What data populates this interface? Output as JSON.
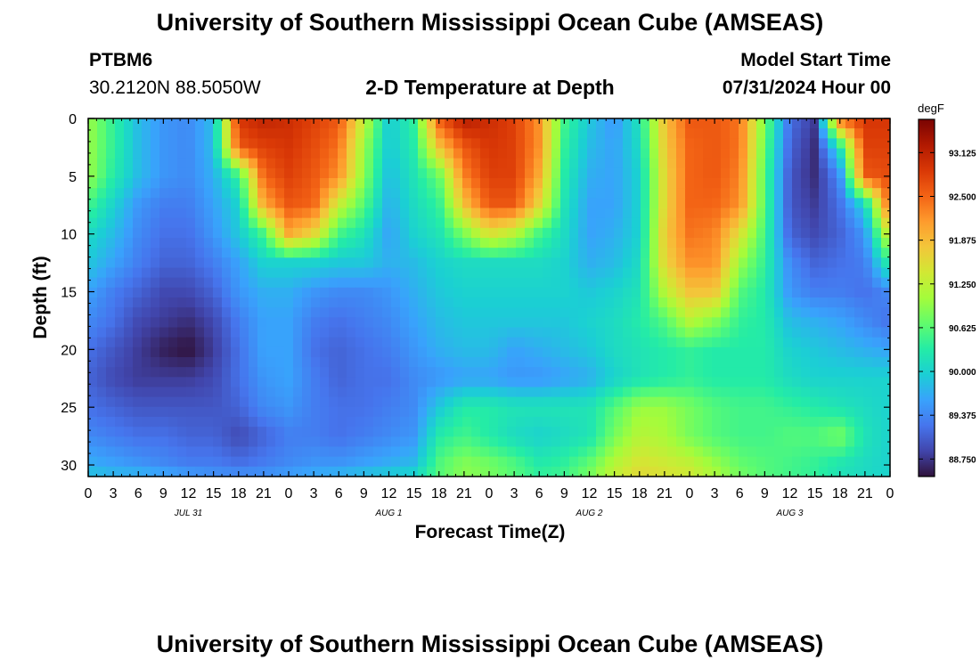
{
  "header": {
    "title": "University of Southern Mississippi Ocean Cube (AMSEAS)",
    "station": "PTBM6",
    "location": "30.2120N  88.5050W",
    "plot_title": "2-D Temperature at Depth",
    "model_start_label": "Model Start Time",
    "model_start_value": "07/31/2024 Hour 00"
  },
  "footer": {
    "title": "University of Southern Mississippi Ocean Cube (AMSEAS)"
  },
  "chart_data": {
    "type": "heatmap",
    "title": "2-D Temperature at Depth",
    "xlabel": "Forecast Time(Z)",
    "ylabel": "Depth (ft)",
    "x_tick_labels": [
      "0",
      "3",
      "6",
      "9",
      "12",
      "15",
      "18",
      "21",
      "0",
      "3",
      "6",
      "9",
      "12",
      "15",
      "18",
      "21",
      "0",
      "3",
      "6",
      "9",
      "12",
      "15",
      "18",
      "21",
      "0",
      "3",
      "6",
      "9",
      "12",
      "15",
      "18",
      "21",
      "0"
    ],
    "date_labels": [
      {
        "label": "JUL 31",
        "tick_index": 4
      },
      {
        "label": "AUG 1",
        "tick_index": 12
      },
      {
        "label": "AUG 2",
        "tick_index": 20
      },
      {
        "label": "AUG 3",
        "tick_index": 28
      }
    ],
    "y_ticks": [
      0,
      5,
      10,
      15,
      20,
      25,
      30
    ],
    "ylim": [
      31,
      0
    ],
    "x_hours_range": [
      0,
      96
    ],
    "colorbar": {
      "unit": "degF",
      "ticks": [
        "93.125",
        "92.500",
        "91.875",
        "91.250",
        "90.625",
        "90.000",
        "89.375",
        "88.750"
      ],
      "range": [
        88.5,
        93.6
      ]
    },
    "colorscale": [
      "#30123b",
      "#4145ab",
      "#4675ed",
      "#39a2fc",
      "#1bcfd4",
      "#24eca6",
      "#61fc6c",
      "#a4fc3b",
      "#d1e834",
      "#f3c63a",
      "#fe9b2d",
      "#f36315",
      "#d93806",
      "#b11901",
      "#7a0402"
    ],
    "grid_hours": [
      0,
      3,
      6,
      9,
      12,
      15,
      18,
      21,
      24,
      27,
      30,
      33,
      36,
      39,
      42,
      45,
      48,
      51,
      54,
      57,
      60,
      63,
      66,
      69,
      72,
      75,
      78,
      81,
      84,
      87,
      90,
      93,
      96
    ],
    "grid_depths": [
      0,
      2.5,
      5,
      7.5,
      10,
      12.5,
      15,
      17.5,
      20,
      22.5,
      25,
      27.5,
      30,
      31
    ],
    "values": [
      [
        91.0,
        90.4,
        89.8,
        89.5,
        89.4,
        89.8,
        92.9,
        93.1,
        93.0,
        92.8,
        92.6,
        91.3,
        89.9,
        90.4,
        92.6,
        93.2,
        93.0,
        92.8,
        92.2,
        90.5,
        89.9,
        89.5,
        90.2,
        91.8,
        92.6,
        92.6,
        92.4,
        90.8,
        89.2,
        88.8,
        92.5,
        92.9,
        92.9
      ],
      [
        91.0,
        90.4,
        89.8,
        89.5,
        89.4,
        89.8,
        92.6,
        92.8,
        92.9,
        92.7,
        92.4,
        91.0,
        89.9,
        90.3,
        91.8,
        92.6,
        92.9,
        92.8,
        92.2,
        90.4,
        89.8,
        89.6,
        90.1,
        91.7,
        92.5,
        92.6,
        92.4,
        90.7,
        89.1,
        88.7,
        90.2,
        92.8,
        92.8
      ],
      [
        91.0,
        90.3,
        89.8,
        89.5,
        89.4,
        89.7,
        90.4,
        92.5,
        92.8,
        92.6,
        92.2,
        90.9,
        89.8,
        90.2,
        90.7,
        92.3,
        92.8,
        92.8,
        92.0,
        90.3,
        89.7,
        89.6,
        90.0,
        91.6,
        92.5,
        92.6,
        92.3,
        90.6,
        89.0,
        88.7,
        89.4,
        92.6,
        92.7
      ],
      [
        90.5,
        90.0,
        89.5,
        89.3,
        89.3,
        89.6,
        90.0,
        92.0,
        92.6,
        92.5,
        91.3,
        90.6,
        89.7,
        90.1,
        90.4,
        91.8,
        92.6,
        92.6,
        91.6,
        90.2,
        89.6,
        89.6,
        90.0,
        91.6,
        92.5,
        92.5,
        92.2,
        90.6,
        89.0,
        88.8,
        89.2,
        90.0,
        92.6
      ],
      [
        90.1,
        89.8,
        89.4,
        89.2,
        89.2,
        89.5,
        89.9,
        90.5,
        92.0,
        91.6,
        90.5,
        90.2,
        89.6,
        90.0,
        90.2,
        90.8,
        91.5,
        91.2,
        90.5,
        90.1,
        89.6,
        89.7,
        90.0,
        91.7,
        92.4,
        92.3,
        91.5,
        90.5,
        89.1,
        88.9,
        89.1,
        89.5,
        91.5
      ],
      [
        89.9,
        89.6,
        89.3,
        89.1,
        89.1,
        89.3,
        89.6,
        90.0,
        90.0,
        90.0,
        89.9,
        89.9,
        89.7,
        89.8,
        90.0,
        90.1,
        90.1,
        90.1,
        90.1,
        90.0,
        89.7,
        89.8,
        90.1,
        91.6,
        92.2,
        92.2,
        91.0,
        90.4,
        89.4,
        89.1,
        89.2,
        89.3,
        90.4
      ],
      [
        89.6,
        89.3,
        89.1,
        88.9,
        88.9,
        89.1,
        89.5,
        89.7,
        89.7,
        89.5,
        89.4,
        89.4,
        89.5,
        89.7,
        89.9,
        90.0,
        90.0,
        90.0,
        90.0,
        90.0,
        89.9,
        90.0,
        90.2,
        91.2,
        91.8,
        91.8,
        90.6,
        90.3,
        89.5,
        89.3,
        89.3,
        89.2,
        89.4
      ],
      [
        89.4,
        89.2,
        88.9,
        88.8,
        88.7,
        88.9,
        89.3,
        89.6,
        89.6,
        89.3,
        89.2,
        89.3,
        89.4,
        89.6,
        89.8,
        89.9,
        89.9,
        89.9,
        89.9,
        89.9,
        90.0,
        90.1,
        90.3,
        90.6,
        91.2,
        90.9,
        90.4,
        90.3,
        89.8,
        89.7,
        89.6,
        89.4,
        89.2
      ],
      [
        89.2,
        89.0,
        88.8,
        88.6,
        88.5,
        88.8,
        89.2,
        89.6,
        89.6,
        89.2,
        89.1,
        89.2,
        89.3,
        89.5,
        89.7,
        89.8,
        89.8,
        89.6,
        89.7,
        89.8,
        89.9,
        90.1,
        90.2,
        90.3,
        90.4,
        90.3,
        90.3,
        90.3,
        90.0,
        89.9,
        89.8,
        89.7,
        89.6
      ],
      [
        89.1,
        88.9,
        88.8,
        88.8,
        88.8,
        88.9,
        89.2,
        89.5,
        89.6,
        89.3,
        89.1,
        89.2,
        89.2,
        89.4,
        89.5,
        89.6,
        89.6,
        89.5,
        89.5,
        89.6,
        89.7,
        90.0,
        90.2,
        90.3,
        90.4,
        90.3,
        90.3,
        90.3,
        90.1,
        90.0,
        90.0,
        90.0,
        90.0
      ],
      [
        89.2,
        89.1,
        89.0,
        89.0,
        89.0,
        89.0,
        89.1,
        89.4,
        89.5,
        89.3,
        89.2,
        89.2,
        89.3,
        89.4,
        89.9,
        90.3,
        90.3,
        90.2,
        90.2,
        90.2,
        90.2,
        90.6,
        91.0,
        91.0,
        90.8,
        90.6,
        90.5,
        90.5,
        90.4,
        90.3,
        90.2,
        90.1,
        90.0
      ],
      [
        89.4,
        89.3,
        89.2,
        89.2,
        89.1,
        89.1,
        88.9,
        89.1,
        89.3,
        89.3,
        89.2,
        89.3,
        89.4,
        89.5,
        90.3,
        90.5,
        90.3,
        90.1,
        90.0,
        90.1,
        90.2,
        90.8,
        91.2,
        91.1,
        90.8,
        90.6,
        90.5,
        90.5,
        90.6,
        90.6,
        90.8,
        90.2,
        90.0
      ],
      [
        89.7,
        89.6,
        89.5,
        89.4,
        89.3,
        89.3,
        89.2,
        89.3,
        89.4,
        89.5,
        89.5,
        89.6,
        89.7,
        89.8,
        90.6,
        90.9,
        90.8,
        90.6,
        90.3,
        90.4,
        90.7,
        91.2,
        91.5,
        91.4,
        91.3,
        91.0,
        90.7,
        90.6,
        90.5,
        90.4,
        90.2,
        90.1,
        90.0
      ],
      [
        89.9,
        89.8,
        89.8,
        89.7,
        89.6,
        89.5,
        89.5,
        89.5,
        89.6,
        89.7,
        89.8,
        89.9,
        90.0,
        90.1,
        90.6,
        90.9,
        90.8,
        90.6,
        90.4,
        90.5,
        90.8,
        91.3,
        91.6,
        91.5,
        91.4,
        91.1,
        90.8,
        90.6,
        90.5,
        90.4,
        90.2,
        90.1,
        90.0
      ]
    ]
  }
}
